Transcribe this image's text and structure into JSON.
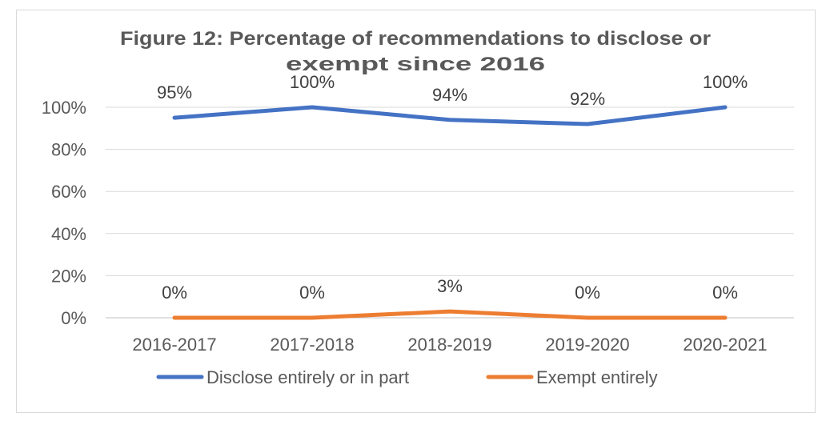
{
  "chart_data": {
    "type": "line",
    "title_lines": [
      "Figure 12: Percentage of recommendations to disclose or",
      "exempt since 2016"
    ],
    "categories": [
      "2016-2017",
      "2017-2018",
      "2018-2019",
      "2019-2020",
      "2020-2021"
    ],
    "series": [
      {
        "name": "Disclose entirely or in part",
        "values": [
          95,
          100,
          94,
          92,
          100
        ],
        "labels": [
          "95%",
          "100%",
          "94%",
          "92%",
          "100%"
        ],
        "color": "#4472C4"
      },
      {
        "name": "Exempt entirely",
        "values": [
          0,
          0,
          3,
          0,
          0
        ],
        "labels": [
          "0%",
          "0%",
          "3%",
          "0%",
          "0%"
        ],
        "color": "#ED7D31"
      }
    ],
    "ylim": [
      0,
      100
    ],
    "yticks": [
      "0%",
      "20%",
      "40%",
      "60%",
      "80%",
      "100%"
    ],
    "grid": true,
    "legend": "bottom"
  }
}
